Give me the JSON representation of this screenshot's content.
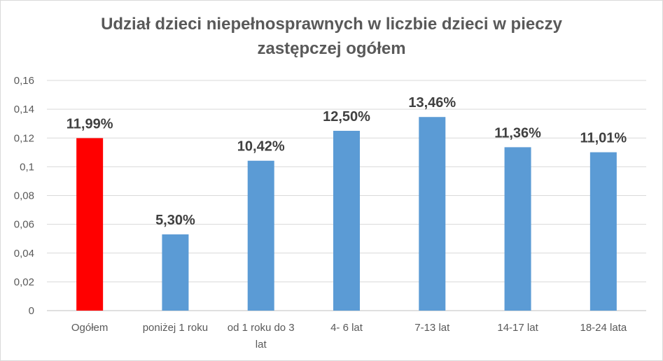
{
  "chart_data": {
    "type": "bar",
    "title": "Udział dzieci niepełnosprawnych w liczbie dzieci w pieczy\nzastępczej ogółem",
    "categories": [
      [
        "Ogółem"
      ],
      [
        "poniżej 1 roku"
      ],
      [
        "od 1 roku do 3",
        "lat"
      ],
      [
        "4- 6 lat"
      ],
      [
        "7-13 lat"
      ],
      [
        "14-17 lat"
      ],
      [
        "18-24 lata"
      ]
    ],
    "values": [
      0.1199,
      0.053,
      0.1042,
      0.125,
      0.1346,
      0.1136,
      0.1101
    ],
    "data_labels": [
      "11,99%",
      "5,30%",
      "10,42%",
      "12,50%",
      "13,46%",
      "11,36%",
      "11,01%"
    ],
    "bar_colors": [
      "#ff0000",
      "#5b9bd5",
      "#5b9bd5",
      "#5b9bd5",
      "#5b9bd5",
      "#5b9bd5",
      "#5b9bd5"
    ],
    "ylim": [
      0,
      0.16
    ],
    "y_ticks": [
      "0",
      "0,02",
      "0,04",
      "0,06",
      "0,08",
      "0,1",
      "0,12",
      "0,14",
      "0,16"
    ],
    "grid": true,
    "grid_color": "#d9d9d9",
    "legend": "none"
  }
}
